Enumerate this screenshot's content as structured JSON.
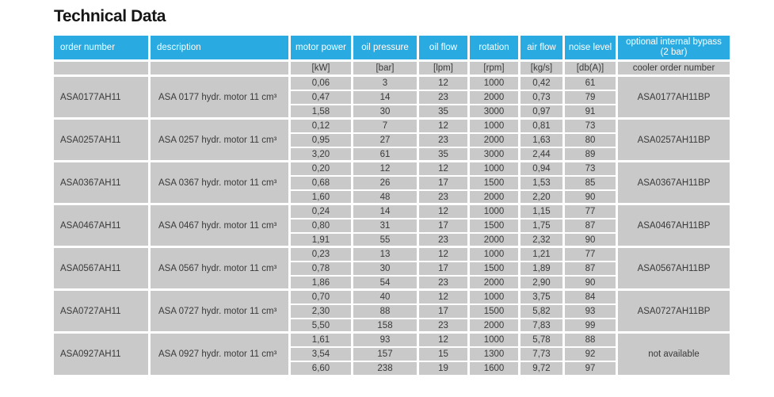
{
  "page": {
    "title": "Technical Data"
  },
  "table": {
    "columns": [
      {
        "key": "order-number",
        "label": "order number",
        "unit": ""
      },
      {
        "key": "description",
        "label": "description",
        "unit": ""
      },
      {
        "key": "motor-power",
        "label": "motor power",
        "unit": "[kW]"
      },
      {
        "key": "oil-pressure",
        "label": "oil pressure",
        "unit": "[bar]"
      },
      {
        "key": "oil-flow",
        "label": "oil flow",
        "unit": "[lpm]"
      },
      {
        "key": "rotation",
        "label": "rotation",
        "unit": "[rpm]"
      },
      {
        "key": "air-flow",
        "label": "air flow",
        "unit": "[kg/s]"
      },
      {
        "key": "noise-level",
        "label": "noise level",
        "unit": "[db(A)]"
      },
      {
        "key": "bypass",
        "label": "optional internal bypass (2 bar)",
        "unit": "cooler order number"
      }
    ],
    "groups": [
      {
        "order_number": "ASA0177AH11",
        "description": "ASA 0177 hydr. motor 11 cm³",
        "bypass": "ASA0177AH11BP",
        "rows": [
          [
            "0,06",
            "3",
            "12",
            "1000",
            "0,42",
            "61"
          ],
          [
            "0,47",
            "14",
            "23",
            "2000",
            "0,73",
            "79"
          ],
          [
            "1,58",
            "30",
            "35",
            "3000",
            "0,97",
            "91"
          ]
        ]
      },
      {
        "order_number": "ASA0257AH11",
        "description": "ASA 0257 hydr. motor 11 cm³",
        "bypass": "ASA0257AH11BP",
        "rows": [
          [
            "0,12",
            "7",
            "12",
            "1000",
            "0,81",
            "73"
          ],
          [
            "0,95",
            "27",
            "23",
            "2000",
            "1,63",
            "80"
          ],
          [
            "3,20",
            "61",
            "35",
            "3000",
            "2,44",
            "89"
          ]
        ]
      },
      {
        "order_number": "ASA0367AH11",
        "description": "ASA 0367 hydr. motor 11 cm³",
        "bypass": "ASA0367AH11BP",
        "rows": [
          [
            "0,20",
            "12",
            "12",
            "1000",
            "0,94",
            "73"
          ],
          [
            "0,68",
            "26",
            "17",
            "1500",
            "1,53",
            "85"
          ],
          [
            "1,60",
            "48",
            "23",
            "2000",
            "2,20",
            "90"
          ]
        ]
      },
      {
        "order_number": "ASA0467AH11",
        "description": "ASA 0467 hydr. motor 11 cm³",
        "bypass": "ASA0467AH11BP",
        "rows": [
          [
            "0,24",
            "14",
            "12",
            "1000",
            "1,15",
            "77"
          ],
          [
            "0,80",
            "31",
            "17",
            "1500",
            "1,75",
            "87"
          ],
          [
            "1,91",
            "55",
            "23",
            "2000",
            "2,32",
            "90"
          ]
        ]
      },
      {
        "order_number": "ASA0567AH11",
        "description": "ASA 0567 hydr. motor 11 cm³",
        "bypass": "ASA0567AH11BP",
        "rows": [
          [
            "0,23",
            "13",
            "12",
            "1000",
            "1,21",
            "77"
          ],
          [
            "0,78",
            "30",
            "17",
            "1500",
            "1,89",
            "87"
          ],
          [
            "1,86",
            "54",
            "23",
            "2000",
            "2,90",
            "90"
          ]
        ]
      },
      {
        "order_number": "ASA0727AH11",
        "description": "ASA 0727 hydr. motor 11 cm³",
        "bypass": "ASA0727AH11BP",
        "rows": [
          [
            "0,70",
            "40",
            "12",
            "1000",
            "3,75",
            "84"
          ],
          [
            "2,30",
            "88",
            "17",
            "1500",
            "5,82",
            "93"
          ],
          [
            "5,50",
            "158",
            "23",
            "2000",
            "7,83",
            "99"
          ]
        ]
      },
      {
        "order_number": "ASA0927AH11",
        "description": "ASA 0927 hydr. motor 11 cm³",
        "bypass": "not available",
        "rows": [
          [
            "1,61",
            "93",
            "12",
            "1000",
            "5,78",
            "88"
          ],
          [
            "3,54",
            "157",
            "15",
            "1300",
            "7,73",
            "92"
          ],
          [
            "6,60",
            "238",
            "19",
            "1600",
            "9,72",
            "97"
          ]
        ]
      }
    ],
    "colors": {
      "header_blue": "#29ABE2",
      "cell_gray": "#C9C9C9",
      "separator_white": "#FFFFFF",
      "text_dark": "#3A3A3A"
    }
  }
}
